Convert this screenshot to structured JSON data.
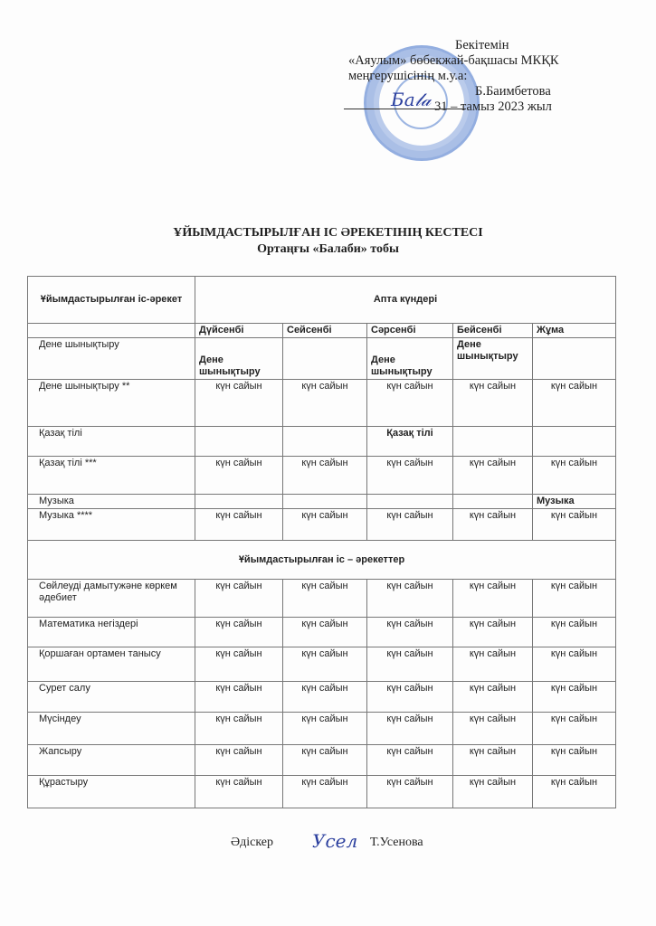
{
  "approval": {
    "line1": "Бекітемін",
    "line2": "«Аяулым» бөбекжай-бақшасы МКҚК",
    "line3": "меңгерушісінің м.у.а:",
    "line4": "Б.Баимбетова",
    "line5": "31 – тамыз   2023  жыл",
    "stamp_text": "«АЯУЛЫМ» БӨБЕКЖАЙ-БАҚШАСЫ МЕМЛЕКЕТТІК КОММУНАЛДЫҚ ҚАЗЫНАЛЫҚ КӘСІПОРНЫ"
  },
  "title": "ҰЙЫМДАСТЫРЫЛҒАН  ІС ӘРЕКЕТІНІҢ   КЕСТЕСІ",
  "subtitle": "Ортаңғы  «Балаби»  тобы",
  "table": {
    "col_header": "Ұйымдастырылған  іс-әрекет",
    "week_header": "Апта   күндері",
    "days": [
      "Дүйсенбі",
      "Сейсенбі",
      "Сәрсенбі",
      "Бейсенбі",
      "Жұма"
    ],
    "rows1": [
      {
        "label": "Дене шынықтыру",
        "cells": [
          "Дене шынықтыру",
          "",
          "Дене шынықтыру",
          "Дене шынықтыру",
          ""
        ]
      },
      {
        "label": "Дене  шынықтыру **",
        "cells": [
          "күн сайын",
          "күн сайын",
          "күн сайын",
          "күн сайын",
          "күн сайын"
        ]
      },
      {
        "label": "Қазақ тілі",
        "cells": [
          "",
          "",
          "Қазақ тілі",
          "",
          ""
        ]
      },
      {
        "label": "Қазақ тілі ***",
        "cells": [
          "күн сайын",
          "күн сайын",
          "күн сайын",
          "күн сайын",
          "күн сайын"
        ]
      },
      {
        "label": "Музыка",
        "cells": [
          "",
          "",
          "",
          "",
          "Музыка"
        ]
      },
      {
        "label": "Музыка ****",
        "cells": [
          "күн сайын",
          "күн сайын",
          "күн сайын",
          "күн сайын",
          "күн сайын"
        ]
      }
    ],
    "section": "Ұйымдастырылған іс – әрекеттер",
    "rows2": [
      {
        "label": "Сөйлеуді дамытужәне көркем  әдебиет",
        "cells": [
          "күн сайын",
          "күн сайын",
          "күн сайын",
          "күн сайын",
          "күн сайын"
        ]
      },
      {
        "label": "Математика негіздері",
        "cells": [
          "күн сайын",
          "күн сайын",
          "күн сайын",
          "күн сайын",
          "күн сайын"
        ]
      },
      {
        "label": "Қоршаған    ортамен танысу",
        "cells": [
          "күн сайын",
          "күн сайын",
          "күн сайын",
          "күн сайын",
          "күн сайын"
        ]
      },
      {
        "label": "Сурет салу",
        "cells": [
          "күн сайын",
          "күн сайын",
          "күн сайын",
          "күн сайын",
          "күн сайын"
        ]
      },
      {
        "label": "Мүсіндеу",
        "cells": [
          "күн сайын",
          "күн сайын",
          "күн сайын",
          "күн сайын",
          "күн сайын"
        ]
      },
      {
        "label": "Жапсыру",
        "cells": [
          "күн сайын",
          "күн сайын",
          "күн сайын",
          "күн сайын",
          "күн сайын"
        ]
      },
      {
        "label": "Құрастыру",
        "cells": [
          "күн сайын",
          "күн сайын",
          "күн сайын",
          "күн сайын",
          "күн сайын"
        ]
      }
    ]
  },
  "footer": {
    "role": "Әдіскер",
    "name": "Т.Усенова",
    "signature": "Усел"
  }
}
